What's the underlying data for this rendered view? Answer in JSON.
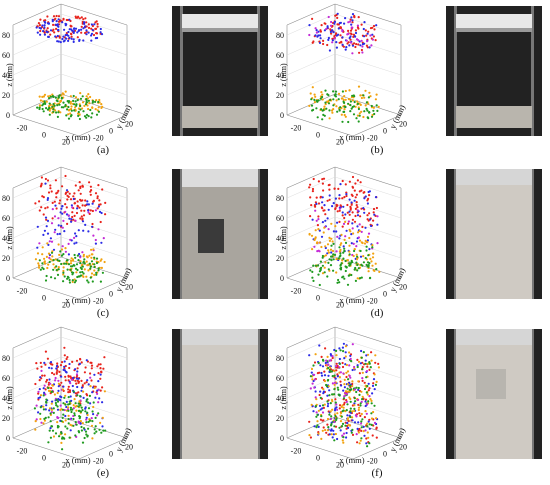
{
  "figure": {
    "colors": {
      "red": "#e8231c",
      "blue": "#2b2be6",
      "orange": "#f2a20f",
      "green": "#1f9a1f",
      "magenta": "#c42ad6",
      "photo_dark": "#222222",
      "photo_light": "#cfcac3"
    },
    "axes": {
      "x_label": "x (mm)",
      "y_label": "y (mm)",
      "z_label": "z (mm)",
      "x_ticks": [
        "-20",
        "0",
        "20"
      ],
      "y_ticks": [
        "-20",
        "0",
        "20"
      ],
      "z_ticks": [
        "0",
        "20",
        "40",
        "60",
        "80"
      ]
    },
    "panels": [
      {
        "label": "(a)",
        "state": "two-layers-ordered"
      },
      {
        "label": "(b)",
        "state": "two-layers-scattered"
      },
      {
        "label": "(c)",
        "state": "separating-columns"
      },
      {
        "label": "(d)",
        "state": "partially-mixed"
      },
      {
        "label": "(e)",
        "state": "mostly-mixed"
      },
      {
        "label": "(f)",
        "state": "fully-mixed"
      }
    ]
  }
}
